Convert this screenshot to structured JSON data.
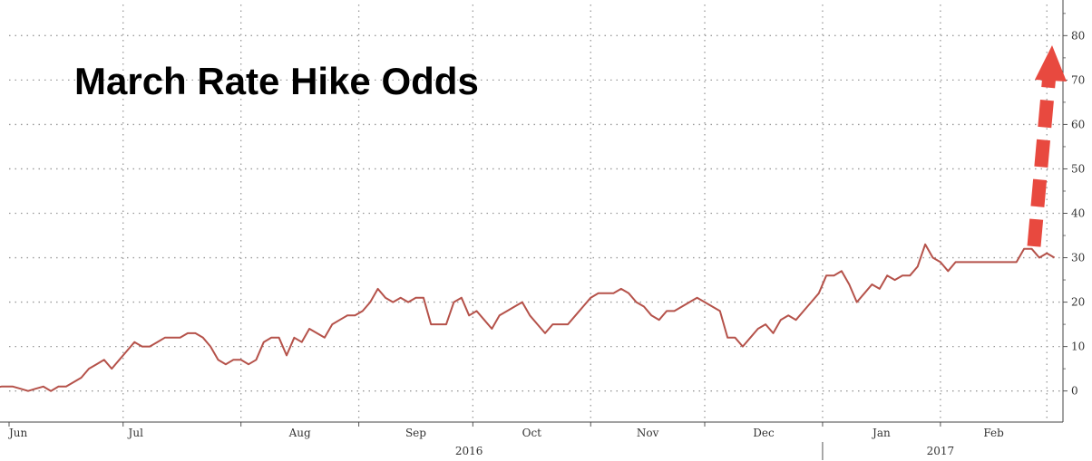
{
  "chart_data": {
    "type": "line",
    "title": "March Rate Hike Odds",
    "xlabel": "",
    "ylabel": "",
    "ylim": [
      -7,
      87
    ],
    "yticks": [
      0,
      10,
      20,
      30,
      40,
      50,
      60,
      70,
      80
    ],
    "xlim": [
      "2016-06-01",
      "2017-03-05"
    ],
    "months": [
      {
        "label": "Jun",
        "date": "2016-06-01"
      },
      {
        "label": "Jul",
        "date": "2016-07-01"
      },
      {
        "label": "Aug",
        "date": "2016-08-01"
      },
      {
        "label": "Sep",
        "date": "2016-09-01"
      },
      {
        "label": "Oct",
        "date": "2016-10-01"
      },
      {
        "label": "Nov",
        "date": "2016-11-01"
      },
      {
        "label": "Dec",
        "date": "2016-12-01"
      },
      {
        "label": "Jan",
        "date": "2017-01-01"
      },
      {
        "label": "Feb",
        "date": "2017-02-01"
      }
    ],
    "years": [
      {
        "label": "2016",
        "date": "2016-09-30"
      },
      {
        "label": "2017",
        "date": "2017-02-01"
      }
    ],
    "year_divider": "2017-01-01",
    "grid": true,
    "annotation": "red dashed arrow pointing up",
    "series": [
      {
        "color": "#b5524a",
        "points": [
          [
            "2016-05-25",
            1
          ],
          [
            "2016-05-27",
            0.5
          ],
          [
            "2016-05-30",
            1
          ],
          [
            "2016-06-02",
            1
          ],
          [
            "2016-06-04",
            0.5
          ],
          [
            "2016-06-06",
            0
          ],
          [
            "2016-06-08",
            0.5
          ],
          [
            "2016-06-10",
            1
          ],
          [
            "2016-06-12",
            0
          ],
          [
            "2016-06-14",
            1
          ],
          [
            "2016-06-16",
            1
          ],
          [
            "2016-06-18",
            2
          ],
          [
            "2016-06-20",
            3
          ],
          [
            "2016-06-22",
            5
          ],
          [
            "2016-06-24",
            6
          ],
          [
            "2016-06-26",
            7
          ],
          [
            "2016-06-28",
            5
          ],
          [
            "2016-06-30",
            7
          ],
          [
            "2016-07-02",
            9
          ],
          [
            "2016-07-04",
            11
          ],
          [
            "2016-07-06",
            10
          ],
          [
            "2016-07-08",
            10
          ],
          [
            "2016-07-10",
            11
          ],
          [
            "2016-07-12",
            12
          ],
          [
            "2016-07-14",
            12
          ],
          [
            "2016-07-16",
            12
          ],
          [
            "2016-07-18",
            13
          ],
          [
            "2016-07-20",
            13
          ],
          [
            "2016-07-22",
            12
          ],
          [
            "2016-07-24",
            10
          ],
          [
            "2016-07-26",
            7
          ],
          [
            "2016-07-28",
            6
          ],
          [
            "2016-07-30",
            7
          ],
          [
            "2016-08-01",
            7
          ],
          [
            "2016-08-03",
            6
          ],
          [
            "2016-08-05",
            7
          ],
          [
            "2016-08-07",
            11
          ],
          [
            "2016-08-09",
            12
          ],
          [
            "2016-08-11",
            12
          ],
          [
            "2016-08-13",
            8
          ],
          [
            "2016-08-15",
            12
          ],
          [
            "2016-08-17",
            11
          ],
          [
            "2016-08-19",
            14
          ],
          [
            "2016-08-21",
            13
          ],
          [
            "2016-08-23",
            12
          ],
          [
            "2016-08-25",
            15
          ],
          [
            "2016-08-27",
            16
          ],
          [
            "2016-08-29",
            17
          ],
          [
            "2016-08-31",
            17
          ],
          [
            "2016-09-02",
            18
          ],
          [
            "2016-09-04",
            20
          ],
          [
            "2016-09-06",
            23
          ],
          [
            "2016-09-08",
            21
          ],
          [
            "2016-09-10",
            20
          ],
          [
            "2016-09-12",
            21
          ],
          [
            "2016-09-14",
            20
          ],
          [
            "2016-09-16",
            21
          ],
          [
            "2016-09-18",
            21
          ],
          [
            "2016-09-20",
            15
          ],
          [
            "2016-09-22",
            15
          ],
          [
            "2016-09-24",
            15
          ],
          [
            "2016-09-26",
            20
          ],
          [
            "2016-09-28",
            21
          ],
          [
            "2016-09-30",
            17
          ],
          [
            "2016-10-02",
            18
          ],
          [
            "2016-10-04",
            16
          ],
          [
            "2016-10-06",
            14
          ],
          [
            "2016-10-08",
            17
          ],
          [
            "2016-10-10",
            18
          ],
          [
            "2016-10-12",
            19
          ],
          [
            "2016-10-14",
            20
          ],
          [
            "2016-10-16",
            17
          ],
          [
            "2016-10-18",
            15
          ],
          [
            "2016-10-20",
            13
          ],
          [
            "2016-10-22",
            15
          ],
          [
            "2016-10-24",
            15
          ],
          [
            "2016-10-26",
            15
          ],
          [
            "2016-10-28",
            17
          ],
          [
            "2016-10-30",
            19
          ],
          [
            "2016-11-01",
            21
          ],
          [
            "2016-11-03",
            22
          ],
          [
            "2016-11-05",
            22
          ],
          [
            "2016-11-07",
            22
          ],
          [
            "2016-11-09",
            23
          ],
          [
            "2016-11-11",
            22
          ],
          [
            "2016-11-13",
            20
          ],
          [
            "2016-11-15",
            19
          ],
          [
            "2016-11-17",
            17
          ],
          [
            "2016-11-19",
            16
          ],
          [
            "2016-11-21",
            18
          ],
          [
            "2016-11-23",
            18
          ],
          [
            "2016-11-25",
            19
          ],
          [
            "2016-11-27",
            20
          ],
          [
            "2016-11-29",
            21
          ],
          [
            "2016-12-01",
            20
          ],
          [
            "2016-12-03",
            19
          ],
          [
            "2016-12-05",
            18
          ],
          [
            "2016-12-07",
            12
          ],
          [
            "2016-12-09",
            12
          ],
          [
            "2016-12-11",
            10
          ],
          [
            "2016-12-13",
            12
          ],
          [
            "2016-12-15",
            14
          ],
          [
            "2016-12-17",
            15
          ],
          [
            "2016-12-19",
            13
          ],
          [
            "2016-12-21",
            16
          ],
          [
            "2016-12-23",
            17
          ],
          [
            "2016-12-25",
            16
          ],
          [
            "2016-12-27",
            18
          ],
          [
            "2016-12-29",
            20
          ],
          [
            "2016-12-31",
            22
          ],
          [
            "2017-01-02",
            26
          ],
          [
            "2017-01-04",
            26
          ],
          [
            "2017-01-06",
            27
          ],
          [
            "2017-01-08",
            24
          ],
          [
            "2017-01-10",
            20
          ],
          [
            "2017-01-12",
            22
          ],
          [
            "2017-01-14",
            24
          ],
          [
            "2017-01-16",
            23
          ],
          [
            "2017-01-18",
            26
          ],
          [
            "2017-01-20",
            25
          ],
          [
            "2017-01-22",
            26
          ],
          [
            "2017-01-24",
            26
          ],
          [
            "2017-01-26",
            28
          ],
          [
            "2017-01-28",
            33
          ],
          [
            "2017-01-30",
            30
          ],
          [
            "2017-02-01",
            29
          ],
          [
            "2017-02-03",
            27
          ],
          [
            "2017-02-05",
            29
          ],
          [
            "2017-02-07",
            29
          ],
          [
            "2017-02-09",
            29
          ],
          [
            "2017-02-11",
            29
          ],
          [
            "2017-02-13",
            29
          ],
          [
            "2017-02-15",
            29
          ],
          [
            "2017-02-17",
            29
          ],
          [
            "2017-02-19",
            29
          ],
          [
            "2017-02-21",
            29
          ],
          [
            "2017-02-23",
            32
          ],
          [
            "2017-02-25",
            32
          ],
          [
            "2017-02-27",
            30
          ],
          [
            "2017-03-01",
            31
          ],
          [
            "2017-03-03",
            30
          ]
        ]
      }
    ]
  }
}
